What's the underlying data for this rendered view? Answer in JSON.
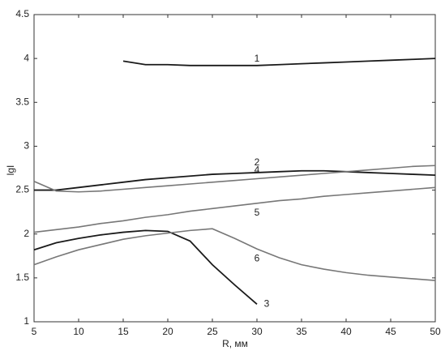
{
  "chart_data": {
    "type": "line",
    "xlabel": "R, мм",
    "ylabel": "lgI",
    "x": [
      5,
      7.5,
      10,
      12.5,
      15,
      17.5,
      20,
      22.5,
      25,
      27.5,
      30,
      32.5,
      35,
      37.5,
      40,
      42.5,
      45,
      47.5,
      50
    ],
    "series": [
      {
        "name": "1",
        "color": "#1a1a1a",
        "values": [
          null,
          null,
          null,
          null,
          3.97,
          3.93,
          3.93,
          3.92,
          3.92,
          3.92,
          3.92,
          3.93,
          3.94,
          3.95,
          3.96,
          3.97,
          3.98,
          3.99,
          4.0
        ]
      },
      {
        "name": "2",
        "color": "#1a1a1a",
        "values": [
          2.5,
          2.5,
          2.53,
          2.56,
          2.59,
          2.62,
          2.64,
          2.66,
          2.68,
          2.69,
          2.7,
          2.71,
          2.72,
          2.72,
          2.71,
          2.7,
          2.69,
          2.68,
          2.67
        ]
      },
      {
        "name": "3",
        "color": "#1a1a1a",
        "values": [
          1.82,
          1.9,
          1.95,
          1.99,
          2.02,
          2.04,
          2.03,
          1.92,
          1.65,
          1.42,
          1.2,
          null,
          null,
          null,
          null,
          null,
          null,
          null,
          null
        ]
      },
      {
        "name": "4",
        "color": "#777777",
        "values": [
          2.6,
          2.49,
          2.48,
          2.49,
          2.51,
          2.53,
          2.55,
          2.57,
          2.59,
          2.61,
          2.63,
          2.65,
          2.67,
          2.69,
          2.71,
          2.73,
          2.75,
          2.77,
          2.78
        ]
      },
      {
        "name": "5",
        "color": "#777777",
        "values": [
          2.02,
          2.05,
          2.08,
          2.12,
          2.15,
          2.19,
          2.22,
          2.26,
          2.29,
          2.32,
          2.35,
          2.38,
          2.4,
          2.43,
          2.45,
          2.47,
          2.49,
          2.51,
          2.53
        ]
      },
      {
        "name": "6",
        "color": "#777777",
        "values": [
          1.65,
          1.74,
          1.82,
          1.88,
          1.94,
          1.98,
          2.01,
          2.04,
          2.06,
          1.95,
          1.83,
          1.73,
          1.65,
          1.6,
          1.56,
          1.53,
          1.51,
          1.49,
          1.47
        ]
      }
    ],
    "xlim": [
      5,
      50
    ],
    "xticks": [
      5,
      10,
      15,
      20,
      25,
      30,
      35,
      40,
      45,
      50
    ],
    "ylim": [
      1,
      4.5
    ],
    "yticks": [
      1,
      1.5,
      2,
      2.5,
      3,
      3.5,
      4,
      4.5
    ]
  }
}
